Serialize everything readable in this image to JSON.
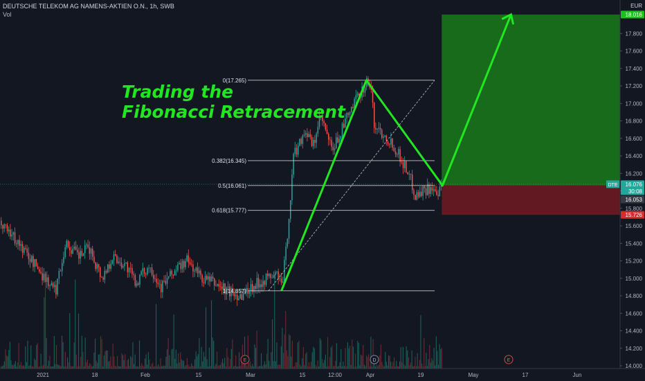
{
  "header": {
    "symbol_line": "DEUTSCHE TELEKOM AG NAMENS-AKTIEN O.N., 1h, SWB",
    "volume_label": "Vol"
  },
  "annotation": {
    "title_line1": "Trading the",
    "title_line2": "Fibonacci Retracement"
  },
  "colors": {
    "background": "#131722",
    "up_candle": "#26a69a",
    "down_candle": "#ef5350",
    "annotation": "#22e622",
    "profit_zone": "#1b7a1b",
    "loss_zone": "#6b1a22",
    "fib_line": "#c8c8c8"
  },
  "chart_data": {
    "type": "candlestick",
    "currency": "EUR",
    "ylim": [
      14.0,
      18.016
    ],
    "y_ticks": [
      "14.000",
      "14.200",
      "14.400",
      "14.600",
      "14.800",
      "15.000",
      "15.200",
      "15.400",
      "15.600",
      "15.800",
      "16.000",
      "16.200",
      "16.400",
      "16.600",
      "16.800",
      "17.000",
      "17.200",
      "17.400",
      "17.600",
      "17.800"
    ],
    "x_ticks": [
      "2021",
      "18",
      "Feb",
      "15",
      "Mar",
      "15",
      "12:00",
      "Apr",
      "19",
      "May",
      "17",
      "Jun"
    ],
    "fib_levels": [
      {
        "label": "0(17.265)",
        "price": 17.265
      },
      {
        "label": "0.382(16.345)",
        "price": 16.345
      },
      {
        "label": "0.5(16.061)",
        "price": 16.061
      },
      {
        "label": "0.618(15.777)",
        "price": 15.777
      },
      {
        "label": "1(14.857)",
        "price": 14.857
      }
    ],
    "price_labels": [
      {
        "text": "18.016",
        "price": 18.016,
        "color": "#1fbf1f"
      },
      {
        "text": "16.076",
        "price": 16.076,
        "color": "#26a69a"
      },
      {
        "text": "30:08",
        "price": 16.076,
        "color": "#26a69a"
      },
      {
        "text": "16.053",
        "price": 16.053,
        "color": "#363a45"
      },
      {
        "text": "15.726",
        "price": 15.726,
        "color": "#d32f2f"
      }
    ],
    "ticker_tag": "DTE",
    "profit_target": 18.016,
    "entry": 16.061,
    "stop_loss": 15.726,
    "event_markers": [
      "E",
      "D",
      "E"
    ],
    "path": [
      {
        "date": "Mar 9",
        "price": 14.857
      },
      {
        "date": "Mar 31",
        "price": 17.265
      },
      {
        "date": "Apr 22",
        "price": 16.061
      },
      {
        "date": "May 11",
        "price": 18.016
      }
    ],
    "price_path": [
      [
        "Jan 1",
        15.05
      ],
      [
        "Jan 5",
        14.85
      ],
      [
        "Jan 8",
        15.4
      ],
      [
        "Jan 12",
        15.25
      ],
      [
        "Jan 15",
        15.35
      ],
      [
        "Jan 19",
        15.0
      ],
      [
        "Jan 22",
        15.25
      ],
      [
        "Jan 26",
        15.15
      ],
      [
        "Jan 29",
        14.95
      ],
      [
        "Feb 2",
        15.15
      ],
      [
        "Feb 5",
        14.9
      ],
      [
        "Feb 9",
        15.1
      ],
      [
        "Feb 12",
        15.2
      ],
      [
        "Feb 16",
        15.0
      ],
      [
        "Feb 19",
        14.95
      ],
      [
        "Feb 23",
        14.85
      ],
      [
        "Feb 26",
        14.8
      ],
      [
        "Mar 1",
        14.9
      ],
      [
        "Mar 5",
        15.0
      ],
      [
        "Mar 8",
        15.05
      ],
      [
        "Mar 9",
        14.88
      ],
      [
        "Mar 10",
        15.3
      ],
      [
        "Mar 11",
        15.8
      ],
      [
        "Mar 12",
        16.4
      ],
      [
        "Mar 15",
        16.7
      ],
      [
        "Mar 17",
        16.5
      ],
      [
        "Mar 19",
        16.85
      ],
      [
        "Mar 22",
        16.45
      ],
      [
        "Mar 24",
        16.65
      ],
      [
        "Mar 26",
        16.85
      ],
      [
        "Mar 29",
        17.1
      ],
      [
        "Mar 31",
        17.25
      ],
      [
        "Apr 1",
        17.2
      ],
      [
        "Apr 2",
        16.75
      ],
      [
        "Apr 6",
        16.6
      ],
      [
        "Apr 8",
        16.5
      ],
      [
        "Apr 12",
        16.2
      ],
      [
        "Apr 14",
        15.95
      ],
      [
        "Apr 16",
        16.0
      ],
      [
        "Apr 19",
        16.05
      ],
      [
        "Apr 20",
        15.9
      ],
      [
        "Apr 22",
        16.06
      ]
    ]
  }
}
